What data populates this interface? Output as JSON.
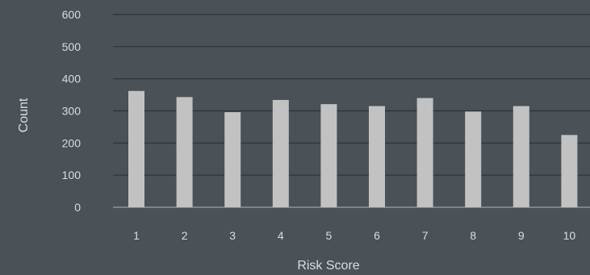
{
  "chart_data": {
    "type": "bar",
    "categories": [
      "1",
      "2",
      "3",
      "4",
      "5",
      "6",
      "7",
      "8",
      "9",
      "10"
    ],
    "values": [
      362,
      343,
      296,
      334,
      321,
      315,
      340,
      298,
      315,
      225
    ],
    "xlabel": "Risk Score",
    "ylabel": "Count",
    "ylim": [
      0,
      600
    ],
    "yticks": [
      0,
      100,
      200,
      300,
      400,
      500,
      600
    ],
    "grid": true,
    "legend": "none"
  },
  "colors": {
    "background": "#4a5157",
    "bar": "#c2c2c2",
    "gridline": "#2e3338",
    "text": "#dcdcdc"
  }
}
